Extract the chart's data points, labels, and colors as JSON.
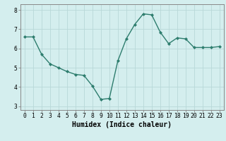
{
  "x": [
    0,
    1,
    2,
    3,
    4,
    5,
    6,
    7,
    8,
    9,
    10,
    11,
    12,
    13,
    14,
    15,
    16,
    17,
    18,
    19,
    20,
    21,
    22,
    23
  ],
  "y": [
    6.6,
    6.6,
    5.7,
    5.2,
    5.0,
    4.8,
    4.65,
    4.6,
    4.05,
    3.35,
    3.4,
    5.35,
    6.5,
    7.25,
    7.8,
    7.75,
    6.85,
    6.25,
    6.55,
    6.5,
    6.05,
    6.05,
    6.05,
    6.1
  ],
  "line_color": "#2e7d6e",
  "marker": "D",
  "marker_size": 2.0,
  "bg_color": "#d4eeee",
  "grid_color": "#b8d8d8",
  "xlabel": "Humidex (Indice chaleur)",
  "xlim": [
    -0.5,
    23.5
  ],
  "ylim": [
    2.8,
    8.3
  ],
  "yticks": [
    3,
    4,
    5,
    6,
    7,
    8
  ],
  "xticks": [
    0,
    1,
    2,
    3,
    4,
    5,
    6,
    7,
    8,
    9,
    10,
    11,
    12,
    13,
    14,
    15,
    16,
    17,
    18,
    19,
    20,
    21,
    22,
    23
  ],
  "xtick_labels": [
    "0",
    "1",
    "2",
    "3",
    "4",
    "5",
    "6",
    "7",
    "8",
    "9",
    "10",
    "11",
    "12",
    "13",
    "14",
    "15",
    "16",
    "17",
    "18",
    "19",
    "20",
    "21",
    "22",
    "23"
  ],
  "tick_label_fontsize": 5.8,
  "xlabel_fontsize": 7.0,
  "line_width": 1.0,
  "spine_color": "#888888"
}
